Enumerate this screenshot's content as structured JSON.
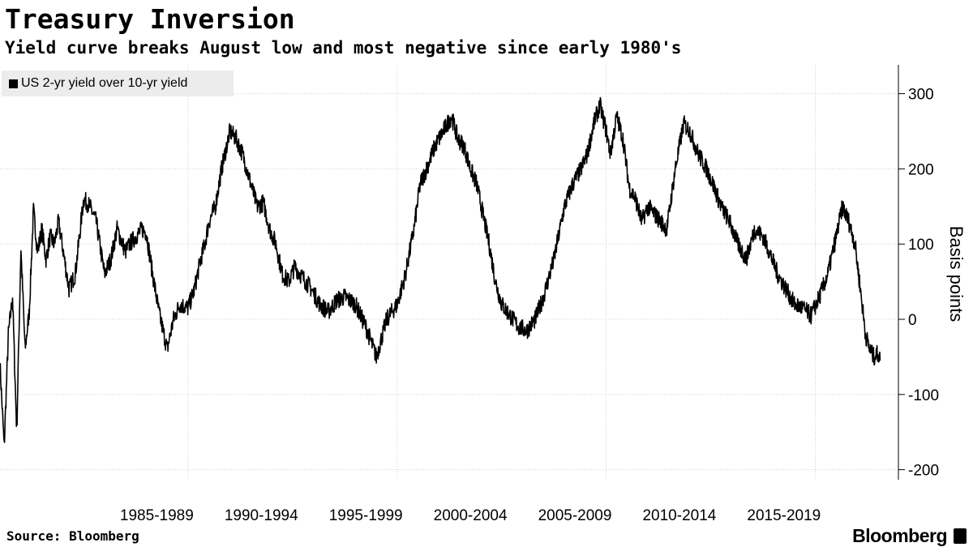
{
  "header": {
    "title": "Treasury Inversion",
    "subtitle": "Yield curve breaks August low and most negative since early 1980's"
  },
  "footer": {
    "source": "Source: Bloomberg",
    "brand": "Bloomberg"
  },
  "chart_data": {
    "type": "line",
    "title": "Treasury Inversion",
    "subtitle": "Yield curve breaks August low and most negative since early 1980's",
    "xlabel": "",
    "ylabel": "Basis points",
    "ylim": [
      -220,
      330
    ],
    "xlim": [
      1980.0,
      2022.2
    ],
    "yticks": [
      300,
      200,
      100,
      0,
      -100,
      -200
    ],
    "ytick_labels": [
      "300",
      "200",
      "100",
      "0",
      "-100",
      "-200"
    ],
    "x_period_labels": [
      "1985-1989",
      "1990-1994",
      "1995-1999",
      "2000-2004",
      "2005-2009",
      "2010-2014",
      "2015-2019"
    ],
    "x_period_centers": [
      1987.5,
      1992.5,
      1997.5,
      2002.5,
      2007.5,
      2012.5,
      2017.5
    ],
    "x_gridlines": [
      1989,
      1999,
      2009,
      2019
    ],
    "grid": true,
    "legend": "top-left",
    "series": [
      {
        "name": "US 2-yr yield over 10-yr yield",
        "color": "#000000",
        "x": [
          1980.0,
          1980.2,
          1980.4,
          1980.6,
          1980.8,
          1981.0,
          1981.2,
          1981.4,
          1981.6,
          1981.8,
          1982.0,
          1982.2,
          1982.4,
          1982.6,
          1982.8,
          1983.0,
          1983.3,
          1983.6,
          1984.0,
          1984.3,
          1984.6,
          1985.0,
          1985.3,
          1985.6,
          1986.0,
          1986.2,
          1986.5,
          1986.8,
          1987.0,
          1987.3,
          1987.6,
          1988.0,
          1988.3,
          1988.6,
          1989.0,
          1989.3,
          1989.6,
          1989.8,
          1990.0,
          1990.3,
          1990.6,
          1991.0,
          1991.3,
          1991.6,
          1992.0,
          1992.3,
          1992.6,
          1992.9,
          1993.2,
          1993.5,
          1993.8,
          1994.1,
          1994.5,
          1994.9,
          1995.3,
          1995.7,
          1996.1,
          1996.5,
          1997.0,
          1997.5,
          1998.0,
          1998.5,
          1999.0,
          1999.4,
          1999.8,
          2000.1,
          2000.4,
          2000.8,
          2001.2,
          2001.6,
          2001.9,
          2002.2,
          2002.5,
          2002.8,
          2003.1,
          2003.4,
          2003.7,
          2004.0,
          2004.4,
          2004.8,
          2005.2,
          2005.6,
          2006.0,
          2006.5,
          2007.0,
          2007.4,
          2007.8,
          2008.1,
          2008.4,
          2008.7,
          2009.0,
          2009.2,
          2009.5,
          2009.8,
          2010.1,
          2010.4,
          2010.7,
          2011.0,
          2011.3,
          2011.6,
          2011.9,
          2012.3,
          2012.7,
          2013.0,
          2013.4,
          2013.8,
          2014.1,
          2014.5,
          2014.9,
          2015.3,
          2015.7,
          2016.1,
          2016.5,
          2016.8,
          2017.2,
          2017.6,
          2018.0,
          2018.4,
          2018.8,
          2019.2,
          2019.6,
          2020.0,
          2020.3,
          2020.6,
          2020.9,
          2021.2,
          2021.4,
          2021.6,
          2021.8,
          2022.0,
          2022.1
        ],
        "values": [
          -60,
          -170,
          -20,
          30,
          -150,
          95,
          -40,
          10,
          145,
          90,
          120,
          80,
          110,
          100,
          130,
          95,
          40,
          60,
          160,
          150,
          130,
          60,
          80,
          120,
          90,
          100,
          110,
          120,
          115,
          60,
          10,
          -40,
          0,
          20,
          15,
          40,
          80,
          100,
          130,
          150,
          200,
          250,
          240,
          220,
          180,
          150,
          155,
          120,
          100,
          60,
          50,
          70,
          55,
          40,
          20,
          10,
          25,
          30,
          20,
          -10,
          -50,
          0,
          20,
          60,
          120,
          180,
          200,
          230,
          250,
          270,
          240,
          230,
          200,
          180,
          140,
          100,
          50,
          20,
          5,
          -10,
          -15,
          0,
          30,
          80,
          150,
          180,
          200,
          220,
          260,
          285,
          250,
          220,
          270,
          240,
          175,
          160,
          130,
          150,
          140,
          130,
          120,
          200,
          260,
          250,
          220,
          200,
          180,
          150,
          130,
          100,
          80,
          120,
          110,
          90,
          60,
          40,
          20,
          15,
          5,
          30,
          60,
          110,
          150,
          130,
          100,
          30,
          -20,
          -40,
          -50,
          -45,
          -55
        ],
        "noise": 12
      }
    ]
  }
}
